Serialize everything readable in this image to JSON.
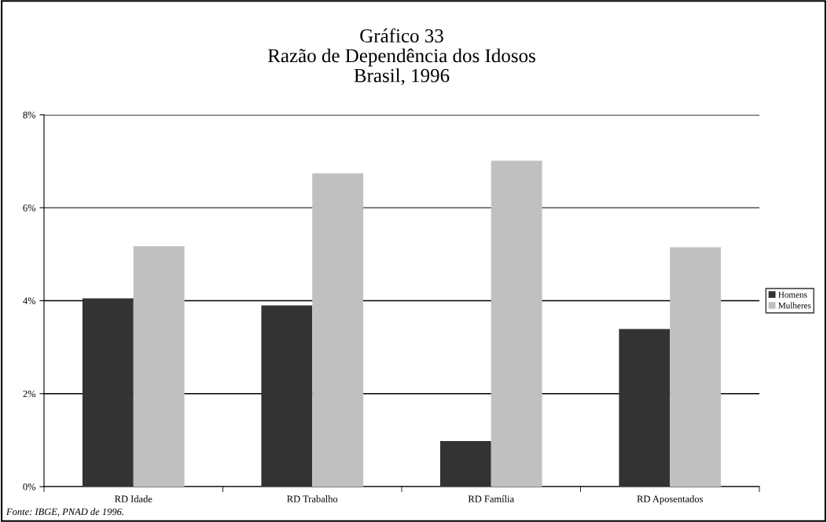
{
  "chart_data": {
    "type": "bar",
    "title": "Gráfico 33\nRazão de Dependência dos Idosos\nBrasil, 1996",
    "categories": [
      "RD Idade",
      "RD Trabalho",
      "RD Família",
      "RD Aposentados"
    ],
    "series": [
      {
        "name": "Homens",
        "color": "#333333",
        "values": [
          4.05,
          3.9,
          0.98,
          3.39
        ]
      },
      {
        "name": "Mulheres",
        "color": "#c0c0c0",
        "values": [
          5.17,
          6.74,
          7.01,
          5.15
        ]
      }
    ],
    "ylim": [
      0,
      8
    ],
    "yticks": [
      {
        "value": 0,
        "label": "0%"
      },
      {
        "value": 2,
        "label": "2%"
      },
      {
        "value": 4,
        "label": "4%"
      },
      {
        "value": 6,
        "label": "6%"
      },
      {
        "value": 8,
        "label": "8%"
      }
    ],
    "grid": "y",
    "legend": "right",
    "annotations": [
      "Fonte: IBGE, PNAD de 1996."
    ]
  }
}
